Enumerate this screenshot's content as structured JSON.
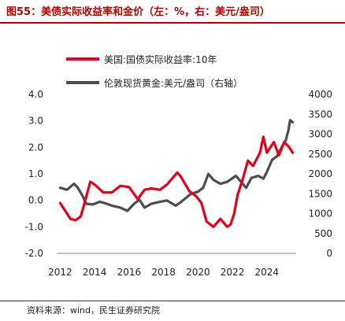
{
  "title": "图55：美债实际收益率和金价（左：%，右：美元/盎司）",
  "source": "资料来源：wind，民生证券研究院",
  "chart_data": {
    "type": "line",
    "x_ticks": [
      "2012",
      "2014",
      "2016",
      "2018",
      "2020",
      "2022",
      "2024"
    ],
    "x_range": [
      2011.8,
      2025.7
    ],
    "y_left": {
      "ticks": [
        "4.0",
        "3.0",
        "2.0",
        "1.0",
        "0.0",
        "-1.0",
        "-2.0"
      ],
      "range": [
        -2.0,
        4.0
      ]
    },
    "y_right": {
      "ticks": [
        "4000",
        "3500",
        "3000",
        "2500",
        "2000",
        "1500",
        "1000",
        "500",
        "0"
      ],
      "range": [
        0,
        4000
      ]
    },
    "legend_position": "top-left",
    "series": [
      {
        "name": "美国:国债实际收益率:10年",
        "axis": "left",
        "color": "#e3001b",
        "points": [
          [
            2012.0,
            -0.1
          ],
          [
            2012.3,
            -0.4
          ],
          [
            2012.6,
            -0.7
          ],
          [
            2012.9,
            -0.75
          ],
          [
            2013.2,
            -0.6
          ],
          [
            2013.5,
            0.1
          ],
          [
            2013.75,
            0.7
          ],
          [
            2014.0,
            0.6
          ],
          [
            2014.5,
            0.3
          ],
          [
            2015.0,
            0.3
          ],
          [
            2015.5,
            0.55
          ],
          [
            2016.0,
            0.5
          ],
          [
            2016.5,
            0.05
          ],
          [
            2016.9,
            0.4
          ],
          [
            2017.3,
            0.45
          ],
          [
            2017.8,
            0.4
          ],
          [
            2018.2,
            0.6
          ],
          [
            2018.8,
            1.05
          ],
          [
            2019.0,
            0.9
          ],
          [
            2019.5,
            0.35
          ],
          [
            2019.9,
            0.15
          ],
          [
            2020.2,
            -0.1
          ],
          [
            2020.5,
            -0.8
          ],
          [
            2020.9,
            -1.0
          ],
          [
            2021.3,
            -0.7
          ],
          [
            2021.7,
            -1.0
          ],
          [
            2021.9,
            -0.9
          ],
          [
            2022.1,
            -0.5
          ],
          [
            2022.3,
            0.2
          ],
          [
            2022.6,
            0.8
          ],
          [
            2022.9,
            1.5
          ],
          [
            2023.2,
            1.3
          ],
          [
            2023.6,
            1.8
          ],
          [
            2023.8,
            2.4
          ],
          [
            2024.0,
            1.8
          ],
          [
            2024.4,
            2.2
          ],
          [
            2024.7,
            1.7
          ],
          [
            2025.0,
            2.2
          ],
          [
            2025.3,
            2.0
          ],
          [
            2025.5,
            1.8
          ]
        ]
      },
      {
        "name": "伦敦现货黄金:美元/盎司（右轴）",
        "axis": "right",
        "color": "#4d4d4d",
        "points": [
          [
            2012.0,
            1650
          ],
          [
            2012.4,
            1600
          ],
          [
            2012.8,
            1750
          ],
          [
            2013.0,
            1670
          ],
          [
            2013.3,
            1450
          ],
          [
            2013.5,
            1250
          ],
          [
            2013.9,
            1230
          ],
          [
            2014.3,
            1300
          ],
          [
            2014.7,
            1250
          ],
          [
            2015.0,
            1200
          ],
          [
            2015.5,
            1150
          ],
          [
            2015.9,
            1070
          ],
          [
            2016.3,
            1250
          ],
          [
            2016.6,
            1350
          ],
          [
            2016.9,
            1150
          ],
          [
            2017.3,
            1250
          ],
          [
            2017.8,
            1300
          ],
          [
            2018.2,
            1330
          ],
          [
            2018.7,
            1200
          ],
          [
            2019.0,
            1290
          ],
          [
            2019.6,
            1500
          ],
          [
            2020.0,
            1550
          ],
          [
            2020.3,
            1650
          ],
          [
            2020.6,
            2000
          ],
          [
            2020.9,
            1850
          ],
          [
            2021.3,
            1750
          ],
          [
            2021.7,
            1800
          ],
          [
            2022.2,
            1950
          ],
          [
            2022.5,
            1800
          ],
          [
            2022.8,
            1650
          ],
          [
            2023.1,
            1900
          ],
          [
            2023.5,
            1950
          ],
          [
            2023.8,
            1880
          ],
          [
            2024.0,
            2050
          ],
          [
            2024.3,
            2350
          ],
          [
            2024.6,
            2450
          ],
          [
            2024.9,
            2700
          ],
          [
            2025.1,
            2850
          ],
          [
            2025.25,
            3100
          ],
          [
            2025.35,
            3350
          ],
          [
            2025.5,
            3300
          ]
        ]
      }
    ]
  }
}
